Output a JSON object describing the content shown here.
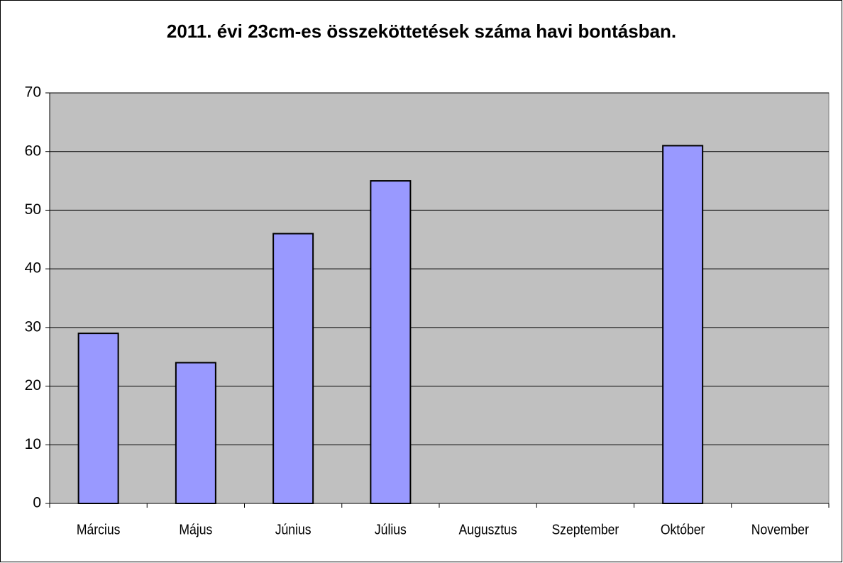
{
  "chart_data": {
    "type": "bar",
    "title": "2011. évi 23cm-es összeköttetések száma havi bontásban.",
    "categories": [
      "Március",
      "Május",
      "Június",
      "Július",
      "Augusztus",
      "Szeptember",
      "Október",
      "November"
    ],
    "values": [
      29,
      24,
      46,
      55,
      null,
      null,
      61,
      null
    ],
    "color": "#9999ff",
    "ylim": [
      0,
      70
    ],
    "yticks": [
      0,
      10,
      20,
      30,
      40,
      50,
      60,
      70
    ],
    "grid": true
  }
}
